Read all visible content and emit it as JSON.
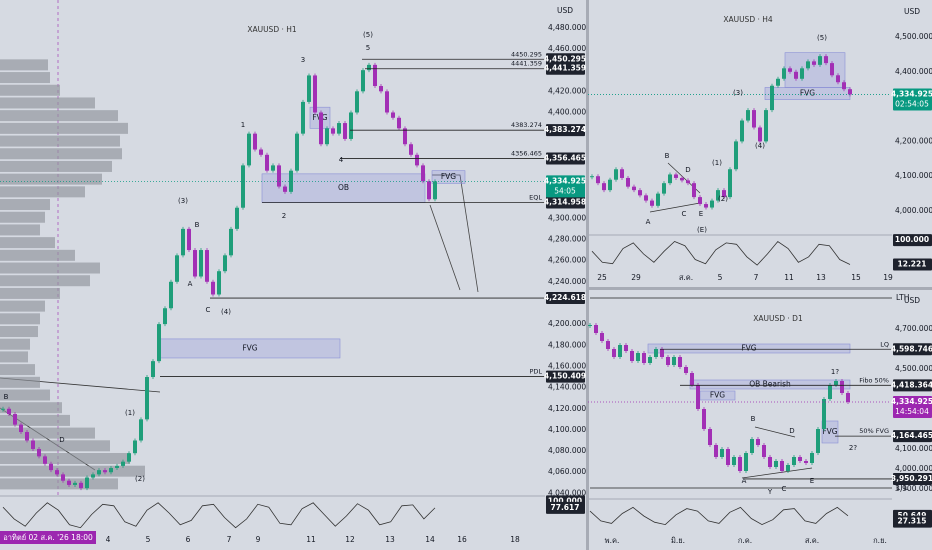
{
  "chart_data": [
    {
      "type": "candlestick",
      "title": "XAUUSD · H1",
      "currency": "USD",
      "up_color": "#1f9e7a",
      "down_color": "#a22fb5",
      "ylim": [
        4038.5,
        4506.3
      ],
      "yticks": [
        {
          "value": 4480,
          "label": "4,480.000"
        },
        {
          "value": 4460,
          "label": "4,460.000"
        },
        {
          "value": 4420,
          "label": "4,420.000"
        },
        {
          "value": 4400,
          "label": "4,400.000"
        },
        {
          "value": 4300,
          "label": "4,300.000"
        },
        {
          "value": 4280,
          "label": "4,280.000"
        },
        {
          "value": 4260,
          "label": "4,260.000"
        },
        {
          "value": 4240,
          "label": "4,240.000"
        },
        {
          "value": 4200,
          "label": "4,200.000"
        },
        {
          "value": 4180,
          "label": "4,180.000"
        },
        {
          "value": 4160,
          "label": "4,160.000"
        },
        {
          "value": 4140,
          "label": "4,140.000"
        },
        {
          "value": 4120,
          "label": "4,120.000"
        },
        {
          "value": 4100,
          "label": "4,100.000"
        },
        {
          "value": 4080,
          "label": "4,080.000"
        },
        {
          "value": 4060,
          "label": "4,060.000"
        },
        {
          "value": 4040,
          "label": "4,040.000"
        }
      ],
      "xlabels": [
        "4",
        "5",
        "6",
        "7",
        "9",
        "11",
        "12",
        "13",
        "14",
        "16",
        "18"
      ],
      "date_label": "อาทิตย์ 02 ส.ค. '26 18:00",
      "close": [
        4120,
        4115,
        4105,
        4098,
        4090,
        4082,
        4075,
        4068,
        4062,
        4058,
        4052,
        4048,
        4050,
        4045,
        4055,
        4058,
        4062,
        4060,
        4064,
        4066,
        4070,
        4078,
        4090,
        4110,
        4150,
        4165,
        4200,
        4215,
        4240,
        4265,
        4290,
        4270,
        4245,
        4270,
        4240,
        4228,
        4250,
        4265,
        4290,
        4310,
        4350,
        4380,
        4365,
        4360,
        4345,
        4350,
        4330,
        4325,
        4345,
        4380,
        4410,
        4435,
        4400,
        4370,
        4385,
        4380,
        4390,
        4375,
        4400,
        4420,
        4440,
        4445,
        4425,
        4420,
        4400,
        4395,
        4385,
        4370,
        4360,
        4350,
        4335,
        4318,
        4334.925
      ],
      "current": {
        "value": 4334.925,
        "label": "4,334.925",
        "countdown": "54:05",
        "color": "#089981"
      },
      "levels": [
        {
          "value": 4450.295,
          "label": "4,450.295",
          "line_label": "4450.295"
        },
        {
          "value": 4441.359,
          "label": "4,441.359",
          "line_label": "4441.359"
        },
        {
          "value": 4383.274,
          "label": "4,383.274",
          "line_label": "4383.274"
        },
        {
          "value": 4356.465,
          "label": "4,356.465",
          "line_label": "4356.465"
        },
        {
          "value": 4314.958,
          "label": "4,314.958",
          "line_label": "EQL"
        },
        {
          "value": 4224.618,
          "label": "4,224.618"
        },
        {
          "value": 4150.409,
          "label": "4,150.409",
          "line_label": "PDL"
        }
      ],
      "zones": [
        {
          "label": "FVG",
          "from": 4405,
          "to": 4385
        },
        {
          "label": "OB",
          "from": 4342,
          "to": 4315
        },
        {
          "label": "FVG",
          "from": 4345,
          "to": 4333
        },
        {
          "label": "FVG",
          "from": 4186,
          "to": 4168
        }
      ],
      "annotations": [
        "(5)",
        "5",
        "3",
        "1",
        "(3)",
        "B",
        "A",
        "C",
        "(4)",
        "(1)",
        "(2)",
        "D",
        "B",
        "2",
        "4"
      ],
      "volume_profile": {
        "prices": [
          4445,
          4433,
          4421,
          4409,
          4397,
          4385,
          4373,
          4361,
          4349,
          4337,
          4325,
          4313,
          4301,
          4289,
          4277,
          4265,
          4253,
          4241,
          4229,
          4217,
          4205,
          4193,
          4181,
          4169,
          4157,
          4145,
          4133,
          4121,
          4109,
          4097,
          4085,
          4073,
          4061,
          4049
        ],
        "values": [
          48,
          50,
          60,
          95,
          118,
          128,
          120,
          122,
          112,
          102,
          85,
          50,
          45,
          40,
          55,
          75,
          100,
          90,
          60,
          45,
          40,
          38,
          30,
          28,
          35,
          40,
          50,
          62,
          70,
          95,
          110,
          130,
          145,
          118
        ]
      },
      "osc": {
        "ylim": [
          -15,
          115
        ],
        "values": [
          80,
          40,
          15,
          60,
          95,
          70,
          20,
          10,
          55,
          90,
          85,
          30,
          15,
          70,
          95,
          60,
          20,
          35,
          85,
          90,
          45,
          10,
          40,
          90,
          80,
          25,
          20,
          75,
          95,
          55,
          15,
          50,
          92,
          70,
          20,
          30,
          85,
          88,
          40,
          77.617
        ],
        "tags": [
          {
            "value": 100,
            "label": "100.000"
          },
          {
            "value": 77.617,
            "label": "77.617"
          }
        ]
      }
    },
    {
      "type": "candlestick",
      "title": "XAUUSD · H4",
      "currency": "USD",
      "up_color": "#1f9e7a",
      "down_color": "#a22fb5",
      "ylim": [
        3939.7,
        4554.6
      ],
      "yticks": [
        {
          "value": 4500,
          "label": "4,500.000"
        },
        {
          "value": 4400,
          "label": "4,400.000"
        },
        {
          "value": 4200,
          "label": "4,200.000"
        },
        {
          "value": 4100,
          "label": "4,100.000"
        },
        {
          "value": 4000,
          "label": "4,000.000"
        }
      ],
      "xlabels": [
        "25",
        "29",
        "ส.ค.",
        "5",
        "7",
        "11",
        "13",
        "15",
        "19"
      ],
      "close": [
        4100,
        4080,
        4060,
        4090,
        4120,
        4095,
        4070,
        4060,
        4045,
        4030,
        4015,
        4050,
        4080,
        4105,
        4095,
        4088,
        4080,
        4040,
        4020,
        4010,
        4030,
        4060,
        4040,
        4120,
        4200,
        4260,
        4290,
        4240,
        4200,
        4290,
        4360,
        4380,
        4410,
        4400,
        4380,
        4410,
        4430,
        4420,
        4445,
        4425,
        4390,
        4370,
        4350,
        4334.925
      ],
      "current": {
        "value": 4334.925,
        "label": "4,334.925",
        "countdown": "02:54:05",
        "color": "#089981"
      },
      "levels": [],
      "zones": [
        {
          "from": 4455,
          "to": 4355
        },
        {
          "label": "FVG",
          "from": 4355,
          "to": 4320
        }
      ],
      "annotations": [
        "(5)",
        "(3)",
        "(4)",
        "(1)",
        "(2)",
        "B",
        "D",
        "A",
        "C",
        "E",
        "(E)"
      ],
      "osc": {
        "ylim": [
          -15,
          115
        ],
        "values": [
          60,
          20,
          15,
          70,
          90,
          50,
          20,
          60,
          95,
          80,
          30,
          15,
          65,
          90,
          85,
          40,
          10,
          50,
          95,
          70,
          20,
          40,
          85,
          80,
          30,
          12.221
        ],
        "tags": [
          {
            "value": 100,
            "label": "100.000"
          },
          {
            "value": 12.221,
            "label": "12.221"
          }
        ]
      }
    },
    {
      "type": "candlestick",
      "title": "XAUUSD · D1",
      "currency": "USD",
      "up_color": "#1f9e7a",
      "down_color": "#a22fb5",
      "ylim": [
        3845,
        4885
      ],
      "yticks": [
        {
          "value": 4700,
          "label": "4,700.000"
        },
        {
          "value": 4500,
          "label": "4,500.000"
        },
        {
          "value": 4100,
          "label": "4,100.000"
        },
        {
          "value": 4000,
          "label": "4,000.000"
        },
        {
          "value": 3900,
          "label": "3,900.000"
        }
      ],
      "xlabels": [
        "พ.ค.",
        "มิ.ย.",
        "ก.ค.",
        "ส.ค.",
        "ก.ย."
      ],
      "close": [
        4720,
        4680,
        4640,
        4600,
        4560,
        4620,
        4590,
        4540,
        4580,
        4530,
        4560,
        4600,
        4560,
        4520,
        4560,
        4510,
        4480,
        4420,
        4300,
        4200,
        4120,
        4060,
        4100,
        4020,
        4060,
        3990,
        4080,
        4150,
        4120,
        4060,
        4010,
        4040,
        3990,
        4020,
        4060,
        4040,
        4030,
        4080,
        4200,
        4350,
        4420,
        4440,
        4380,
        4334.925
      ],
      "current": {
        "value": 4334.925,
        "label": "4,334.925",
        "countdown": "14:54:04",
        "color": "#9c27b0"
      },
      "levels": [
        {
          "value": 4855,
          "label": "LTH",
          "boxed": false
        },
        {
          "value": 4598.746,
          "label": "4,598.746",
          "line_label": "LQ"
        },
        {
          "value": 4418.364,
          "label": "4,418.364",
          "line_label": "Fibo 50%"
        },
        {
          "value": 4164.465,
          "label": "4,164.465",
          "line_label": "50% FVG"
        },
        {
          "value": 3950.291,
          "label": "3,950.291"
        },
        {
          "value": 3905,
          "label": "LTL",
          "boxed": false
        }
      ],
      "zones": [
        {
          "label": "FVG",
          "from": 4625,
          "to": 4580
        },
        {
          "label": "OB Bearish",
          "from": 4445,
          "to": 4400
        },
        {
          "label": "FVG",
          "from": 4390,
          "to": 4345
        },
        {
          "label": "FVG",
          "from": 4240,
          "to": 4130
        }
      ],
      "annotations": [
        "1?",
        "B",
        "D",
        "2?",
        "A",
        "C",
        "E",
        "Y"
      ],
      "osc": {
        "ylim": [
          -15,
          115
        ],
        "values": [
          70,
          30,
          20,
          60,
          85,
          50,
          25,
          15,
          55,
          80,
          70,
          30,
          20,
          65,
          85,
          40,
          15,
          35,
          75,
          80,
          30,
          20,
          60,
          85,
          50.649
        ],
        "tags": [
          {
            "value": 50.649,
            "label": "50.649"
          },
          {
            "value": 27.315,
            "label": "27.315"
          }
        ]
      }
    }
  ]
}
